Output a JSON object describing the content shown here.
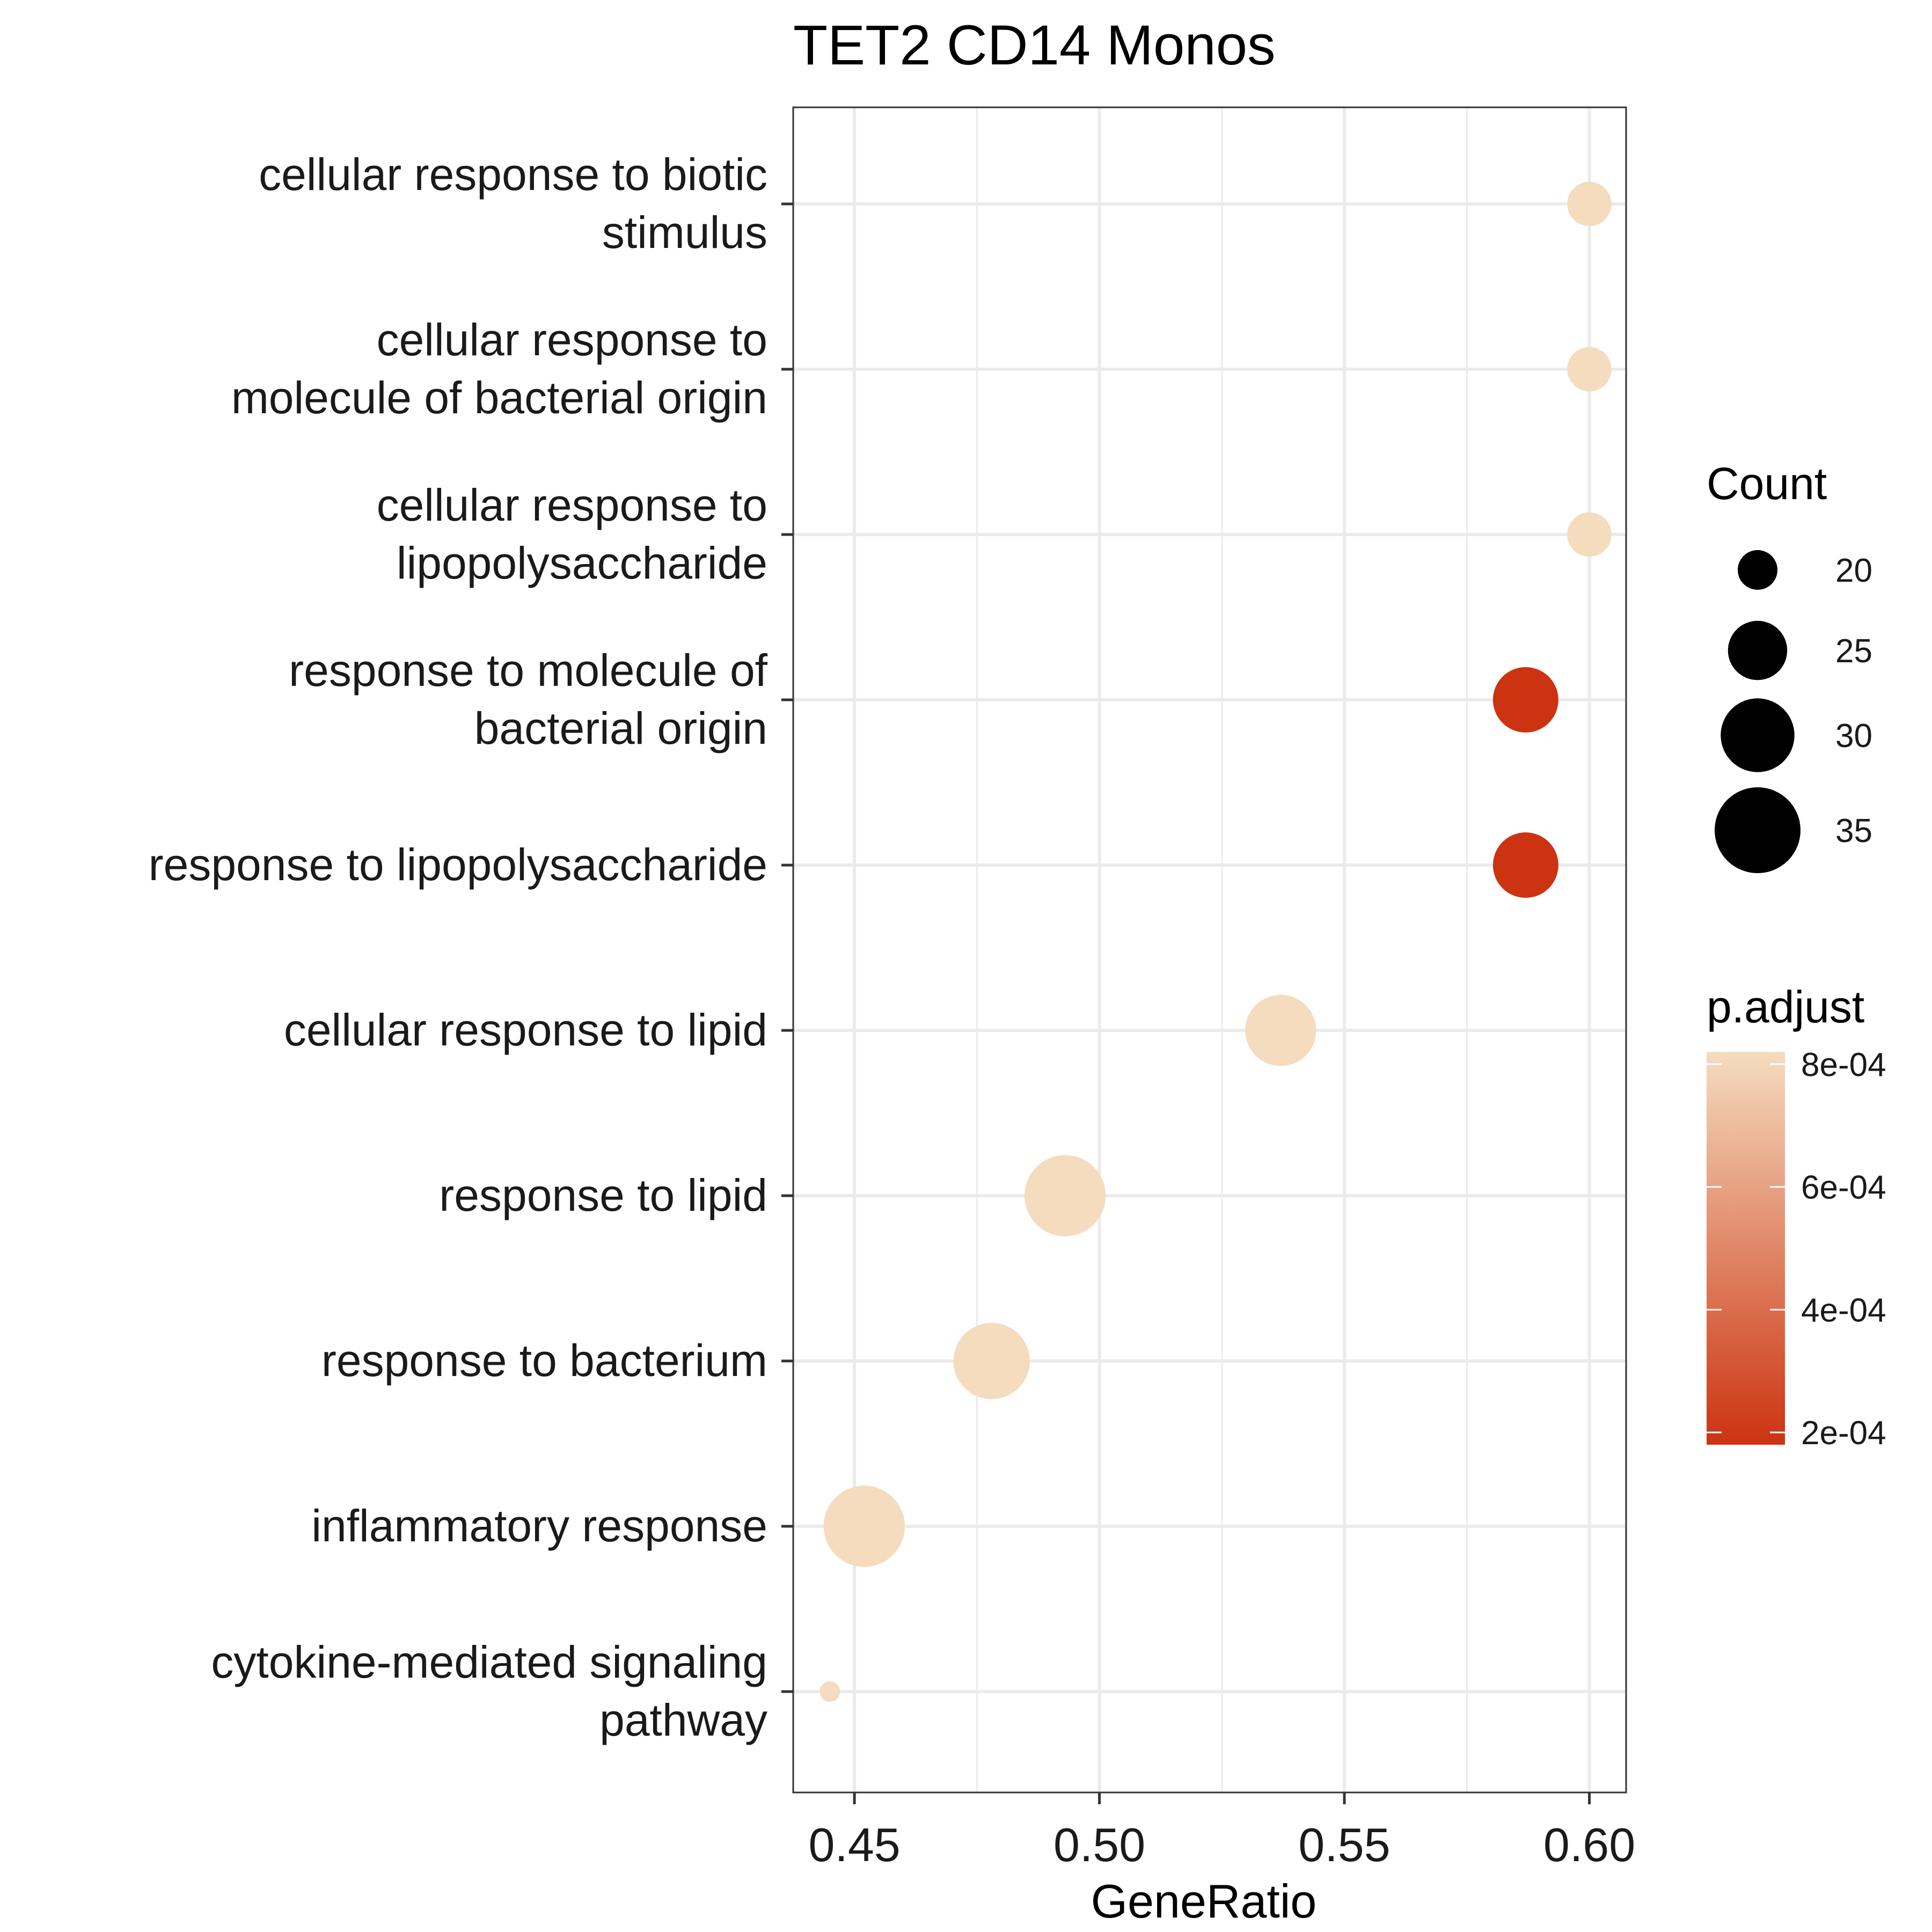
{
  "chart_data": {
    "type": "scatter",
    "title": "TET2 CD14 Monos",
    "xlabel": "GeneRatio",
    "ylabel": "",
    "xlim": [
      0.4375,
      0.6075
    ],
    "x_ticks": [
      0.45,
      0.5,
      0.55,
      0.6
    ],
    "x_tick_labels": [
      "0.45",
      "0.50",
      "0.55",
      "0.60"
    ],
    "x_minor_ticks": [
      0.475,
      0.525,
      0.575
    ],
    "grid": true,
    "categories": [
      {
        "label_lines": [
          "cellular response to biotic",
          "stimulus"
        ]
      },
      {
        "label_lines": [
          "cellular response to",
          "molecule of bacterial origin"
        ]
      },
      {
        "label_lines": [
          "cellular response to",
          "lipopolysaccharide"
        ]
      },
      {
        "label_lines": [
          "response to molecule of",
          "bacterial origin"
        ]
      },
      {
        "label_lines": [
          "response to lipopolysaccharide"
        ]
      },
      {
        "label_lines": [
          "cellular response to lipid"
        ]
      },
      {
        "label_lines": [
          "response to lipid"
        ]
      },
      {
        "label_lines": [
          "response to bacterium"
        ]
      },
      {
        "label_lines": [
          "inflammatory response"
        ]
      },
      {
        "label_lines": [
          "cytokine-mediated signaling",
          "pathway"
        ]
      }
    ],
    "points": [
      {
        "x": 0.6,
        "count": 21,
        "p_adjust": 0.00082
      },
      {
        "x": 0.6,
        "count": 21,
        "p_adjust": 0.00082
      },
      {
        "x": 0.6,
        "count": 21,
        "p_adjust": 0.00082
      },
      {
        "x": 0.587,
        "count": 27,
        "p_adjust": 0.00018
      },
      {
        "x": 0.587,
        "count": 27,
        "p_adjust": 0.00018
      },
      {
        "x": 0.537,
        "count": 29,
        "p_adjust": 0.00082
      },
      {
        "x": 0.493,
        "count": 33,
        "p_adjust": 0.00082
      },
      {
        "x": 0.478,
        "count": 31,
        "p_adjust": 0.00082
      },
      {
        "x": 0.452,
        "count": 33,
        "p_adjust": 0.00082
      },
      {
        "x": 0.445,
        "count": 17,
        "p_adjust": 0.00082
      }
    ],
    "size_legend": {
      "title": "Count",
      "placement": "right",
      "values": [
        20,
        25,
        30,
        35
      ],
      "labels": [
        "20",
        "25",
        "30",
        "35"
      ],
      "color": "#000000"
    },
    "color_legend": {
      "title": "p.adjust",
      "placement": "right",
      "range": [
        0.00018,
        0.00082
      ],
      "ticks": [
        0.0008,
        0.0006,
        0.0004,
        0.0002
      ],
      "tick_labels": [
        "8e-04",
        "6e-04",
        "4e-04",
        "2e-04"
      ],
      "low_color": "#cc3311",
      "high_color": "#f5dcbf"
    }
  }
}
